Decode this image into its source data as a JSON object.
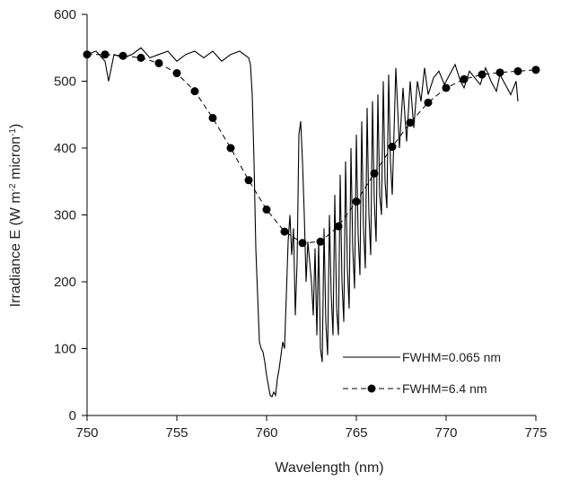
{
  "chart_data": {
    "type": "line",
    "xlabel": "Wavelength (nm)",
    "ylabel": "Irradiance E (W m",
    "ylabel_parts": [
      {
        "text": "Irradiance E (W m",
        "sup": false
      },
      {
        "text": "-2",
        "sup": true
      },
      {
        "text": " micron",
        "sup": false
      },
      {
        "text": "-1",
        "sup": true
      },
      {
        "text": ")",
        "sup": false
      }
    ],
    "xlim": [
      750,
      775
    ],
    "ylim": [
      0,
      600
    ],
    "xticks": [
      "750",
      "755",
      "760",
      "765",
      "770",
      "775"
    ],
    "yticks": [
      "0",
      "100",
      "200",
      "300",
      "400",
      "500",
      "600"
    ],
    "legend_position": "bottom-right",
    "grid": false,
    "series": [
      {
        "name": "FWHM=0.065 nm",
        "style": "line",
        "color": "#000000",
        "x": [
          750,
          750.5,
          751,
          751.2,
          751.5,
          752,
          752.5,
          753,
          753.5,
          754,
          754.5,
          755,
          755.5,
          756,
          756.5,
          757,
          757.5,
          758,
          758.5,
          759,
          759.1,
          759.2,
          759.3,
          759.4,
          759.5,
          759.6,
          759.7,
          759.8,
          759.9,
          760,
          760.1,
          760.2,
          760.3,
          760.4,
          760.5,
          760.6,
          760.7,
          760.8,
          760.9,
          761,
          761.1,
          761.2,
          761.3,
          761.4,
          761.5,
          761.6,
          761.7,
          761.8,
          761.9,
          762,
          762.1,
          762.2,
          762.3,
          762.4,
          762.5,
          762.6,
          762.7,
          762.8,
          762.9,
          763,
          763.1,
          763.2,
          763.3,
          763.4,
          763.5,
          763.6,
          763.7,
          763.8,
          763.9,
          764,
          764.1,
          764.2,
          764.3,
          764.4,
          764.5,
          764.6,
          764.7,
          764.8,
          764.9,
          765,
          765.1,
          765.2,
          765.3,
          765.4,
          765.5,
          765.6,
          765.7,
          765.8,
          765.9,
          766,
          766.1,
          766.2,
          766.3,
          766.4,
          766.5,
          766.6,
          766.7,
          766.8,
          766.9,
          767,
          767.2,
          767.4,
          767.6,
          767.8,
          768,
          768.2,
          768.4,
          768.6,
          768.8,
          769,
          769.3,
          769.6,
          769.9,
          770.2,
          770.5,
          770.8,
          771,
          771.3,
          771.6,
          771.9,
          772.2,
          772.5,
          772.8,
          773,
          773.3,
          773.6,
          773.9,
          774
        ],
        "y": [
          540,
          545,
          530,
          500,
          540,
          535,
          540,
          550,
          535,
          540,
          545,
          530,
          540,
          545,
          535,
          545,
          530,
          540,
          545,
          535,
          525,
          480,
          380,
          250,
          180,
          110,
          100,
          95,
          80,
          60,
          45,
          30,
          28,
          35,
          30,
          55,
          70,
          90,
          110,
          100,
          180,
          260,
          300,
          240,
          280,
          150,
          230,
          420,
          440,
          380,
          300,
          200,
          260,
          230,
          200,
          150,
          250,
          120,
          260,
          100,
          80,
          280,
          140,
          90,
          300,
          180,
          120,
          330,
          160,
          120,
          360,
          200,
          140,
          380,
          220,
          160,
          400,
          250,
          190,
          420,
          270,
          210,
          440,
          280,
          220,
          460,
          300,
          240,
          470,
          320,
          260,
          480,
          330,
          300,
          500,
          350,
          310,
          510,
          380,
          330,
          520,
          400,
          490,
          410,
          500,
          430,
          500,
          470,
          520,
          480,
          505,
          515,
          495,
          510,
          525,
          500,
          490,
          515,
          505,
          495,
          520,
          500,
          485,
          510,
          495,
          480,
          500,
          470
        ]
      },
      {
        "name": "FWHM=6.4 nm",
        "style": "line-dots",
        "color": "#000000",
        "x": [
          750,
          751,
          752,
          753,
          754,
          755,
          756,
          757,
          758,
          759,
          760,
          761,
          762,
          763,
          764,
          765,
          766,
          767,
          768,
          769,
          770,
          771,
          772,
          773,
          774,
          775
        ],
        "y": [
          540,
          540,
          538,
          535,
          527,
          512,
          485,
          445,
          400,
          352,
          308,
          275,
          258,
          260,
          283,
          320,
          362,
          402,
          438,
          468,
          490,
          503,
          510,
          513,
          515,
          517
        ]
      }
    ]
  }
}
